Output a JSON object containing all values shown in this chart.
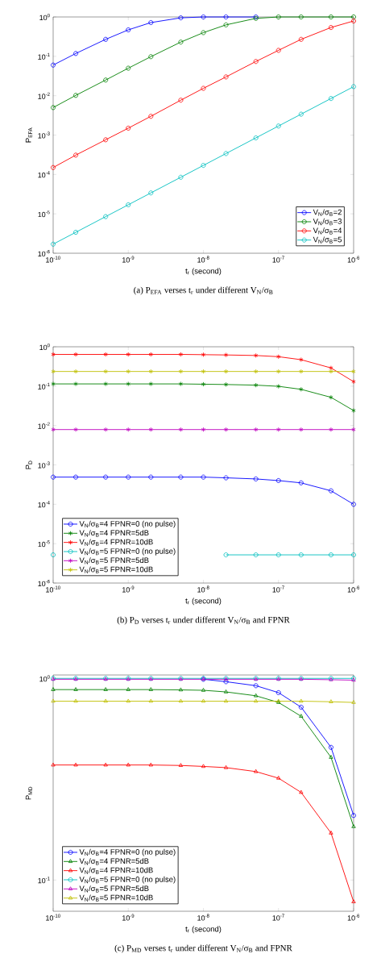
{
  "chart_data": [
    {
      "type": "line",
      "title": "(a) P$_{EFA}$ verses t$_{r}$ under different V$_{N}$/σ$_{B}$",
      "xlabel": "t$_{r}$ (second)",
      "ylabel": "P$_{EFA}$",
      "log": "xy",
      "legend": "bottom right",
      "x": [
        1e-10,
        2e-10,
        5e-10,
        1e-09,
        2e-09,
        5e-09,
        1e-08,
        2e-08,
        5e-08,
        1e-07,
        2e-07,
        5e-07,
        1e-06
      ],
      "xlim": [
        1e-10,
        1e-06
      ],
      "ylim": [
        1e-06,
        1
      ],
      "xticks": [
        {
          "value": 1e-10,
          "label": "10$^{-10}$"
        },
        {
          "value": 1e-09,
          "label": "10$^{-9}$"
        },
        {
          "value": 1e-08,
          "label": "10$^{-8}$"
        },
        {
          "value": 1e-07,
          "label": "10$^{-7}$"
        },
        {
          "value": 1e-06,
          "label": "10$^{-6}$"
        }
      ],
      "yticks": [
        {
          "value": 1e-06,
          "label": "10$^{-6}$"
        },
        {
          "value": 1e-05,
          "label": "10$^{-5}$"
        },
        {
          "value": 0.0001,
          "label": "10$^{-4}$"
        },
        {
          "value": 0.001,
          "label": "10$^{-3}$"
        },
        {
          "value": 0.01,
          "label": "10$^{-2}$"
        },
        {
          "value": 0.1,
          "label": "10$^{-1}$"
        },
        {
          "value": 1,
          "label": "10$^{0}$"
        }
      ],
      "series": [
        {
          "name": "V$_{N}$/σ$_{B}$=2",
          "color": "#0000ff",
          "marker": "circle",
          "values": [
            0.06,
            0.118,
            0.27,
            0.47,
            0.72,
            0.95,
            1,
            1,
            1,
            null,
            null,
            null,
            null
          ]
        },
        {
          "name": "V$_{N}$/σ$_{B}$=3",
          "color": "#008000",
          "marker": "circle",
          "values": [
            0.005,
            0.0102,
            0.025,
            0.05,
            0.098,
            0.23,
            0.4,
            0.63,
            0.92,
            1,
            1,
            1,
            1
          ]
        },
        {
          "name": "V$_{N}$/σ$_{B}$=4",
          "color": "#ff0000",
          "marker": "circle",
          "values": [
            0.00015,
            0.00031,
            0.00076,
            0.0015,
            0.003,
            0.0077,
            0.0154,
            0.03,
            0.074,
            0.142,
            0.27,
            0.54,
            0.79
          ]
        },
        {
          "name": "V$_{N}$/σ$_{B}$=5",
          "color": "#00bfbf",
          "marker": "circle",
          "values": [
            1.7e-06,
            3.4e-06,
            8.5e-06,
            1.7e-05,
            3.4e-05,
            8.5e-05,
            0.00017,
            0.00034,
            0.00085,
            0.0017,
            0.0034,
            0.0085,
            0.017
          ]
        }
      ]
    },
    {
      "type": "line",
      "title": "(b) P$_{D}$ verses t$_{r}$ under different V$_{N}$/σ$_{B}$ and FPNR",
      "xlabel": "t$_{r}$ (second)",
      "ylabel": "P$_{D}$",
      "log": "xy",
      "legend": "bottom left",
      "x": [
        1e-10,
        2e-10,
        5e-10,
        1e-09,
        2e-09,
        5e-09,
        1e-08,
        2e-08,
        5e-08,
        1e-07,
        2e-07,
        5e-07,
        1e-06
      ],
      "xlim": [
        1e-10,
        1e-06
      ],
      "ylim": [
        1e-06,
        1
      ],
      "xticks": [
        {
          "value": 1e-10,
          "label": "10$^{-10}$"
        },
        {
          "value": 1e-09,
          "label": "10$^{-9}$"
        },
        {
          "value": 1e-08,
          "label": "10$^{-8}$"
        },
        {
          "value": 1e-07,
          "label": "10$^{-7}$"
        },
        {
          "value": 1e-06,
          "label": "10$^{-6}$"
        }
      ],
      "yticks": [
        {
          "value": 1e-06,
          "label": "10$^{-6}$"
        },
        {
          "value": 1e-05,
          "label": "10$^{-5}$"
        },
        {
          "value": 0.0001,
          "label": "10$^{-4}$"
        },
        {
          "value": 0.001,
          "label": "10$^{-3}$"
        },
        {
          "value": 0.01,
          "label": "10$^{-2}$"
        },
        {
          "value": 0.1,
          "label": "10$^{-1}$"
        },
        {
          "value": 1,
          "label": "10$^{0}$"
        }
      ],
      "series": [
        {
          "name": "V$_{N}$/σ$_{B}$=4 FPNR=0 (no pulse)",
          "color": "#0000ff",
          "marker": "circle",
          "values": [
            0.00049,
            0.00049,
            0.00049,
            0.00049,
            0.00049,
            0.00049,
            0.00049,
            0.00047,
            0.00044,
            0.0004,
            0.00035,
            0.00022,
            0.0001
          ]
        },
        {
          "name": "V$_{N}$/σ$_{B}$=4 FPNR=5dB",
          "color": "#008000",
          "marker": "cross",
          "values": [
            0.114,
            0.114,
            0.114,
            0.114,
            0.114,
            0.114,
            0.112,
            0.11,
            0.106,
            0.099,
            0.083,
            0.052,
            0.024
          ]
        },
        {
          "name": "V$_{N}$/σ$_{B}$=4 FPNR=10dB",
          "color": "#ff0000",
          "marker": "cross",
          "values": [
            0.64,
            0.64,
            0.64,
            0.64,
            0.64,
            0.64,
            0.63,
            0.62,
            0.6,
            0.56,
            0.47,
            0.29,
            0.13
          ]
        },
        {
          "name": "V$_{N}$/σ$_{B}$=5 FPNR=0 (no pulse)",
          "color": "#00bfbf",
          "marker": "circle",
          "values": [
            5.2e-06,
            null,
            null,
            null,
            null,
            null,
            null,
            5.2e-06,
            5.2e-06,
            5.2e-06,
            5.2e-06,
            5.2e-06,
            5.2e-06
          ]
        },
        {
          "name": "V$_{N}$/σ$_{B}$=5 FPNR=5dB",
          "color": "#bf00bf",
          "marker": "cross",
          "values": [
            0.0079,
            0.0079,
            0.0079,
            0.0079,
            0.0079,
            0.0079,
            0.0079,
            0.0079,
            0.0079,
            0.0079,
            0.0079,
            0.0079,
            0.0079
          ]
        },
        {
          "name": "V$_{N}$/σ$_{B}$=5 FPNR=10dB",
          "color": "#bfbf00",
          "marker": "cross",
          "values": [
            0.236,
            0.236,
            0.236,
            0.236,
            0.236,
            0.236,
            0.236,
            0.236,
            0.236,
            0.236,
            0.236,
            0.236,
            0.236
          ]
        }
      ]
    },
    {
      "type": "line",
      "title": "(c) P$_{MD}$ verses t$_{r}$ under different V$_{N}$/σ$_{B}$ and FPNR",
      "xlabel": "t$_{r}$ (second)",
      "ylabel": "P$_{MD}$",
      "log": "xy",
      "legend": "bottom left",
      "x": [
        1e-10,
        2e-10,
        5e-10,
        1e-09,
        2e-09,
        5e-09,
        1e-08,
        2e-08,
        5e-08,
        1e-07,
        2e-07,
        5e-07,
        1e-06
      ],
      "xlim": [
        1e-10,
        1e-06
      ],
      "ylim": [
        0.07,
        1.04
      ],
      "xticks": [
        {
          "value": 1e-10,
          "label": "10$^{-10}$"
        },
        {
          "value": 1e-09,
          "label": "10$^{-9}$"
        },
        {
          "value": 1e-08,
          "label": "10$^{-8}$"
        },
        {
          "value": 1e-07,
          "label": "10$^{-7}$"
        },
        {
          "value": 1e-06,
          "label": "10$^{-6}$"
        }
      ],
      "yticks": [
        {
          "value": 0.1,
          "label": "10$^{-1}$"
        },
        {
          "value": 1,
          "label": "10$^{0}$"
        }
      ],
      "series": [
        {
          "name": "V$_{N}$/σ$_{B}$=4 FPNR=0 (no pulse)",
          "color": "#0000ff",
          "marker": "circle",
          "values": [
            null,
            null,
            null,
            null,
            null,
            null,
            0.99,
            0.963,
            0.92,
            0.85,
            0.72,
            0.455,
            0.209
          ]
        },
        {
          "name": "V$_{N}$/σ$_{B}$=4 FPNR=5dB",
          "color": "#008000",
          "marker": "triangle",
          "values": [
            0.88,
            0.88,
            0.88,
            0.88,
            0.88,
            0.877,
            0.873,
            0.857,
            0.82,
            0.76,
            0.649,
            0.406,
            0.184
          ]
        },
        {
          "name": "V$_{N}$/σ$_{B}$=4 FPNR=10dB",
          "color": "#ff0000",
          "marker": "triangle",
          "values": [
            0.372,
            0.372,
            0.372,
            0.372,
            0.372,
            0.37,
            0.366,
            0.361,
            0.345,
            0.32,
            0.272,
            0.171,
            0.078
          ]
        },
        {
          "name": "V$_{N}$/σ$_{B}$=5 FPNR=0 (no pulse)",
          "color": "#00bfbf",
          "marker": "circle",
          "values": [
            1,
            1,
            1,
            1,
            1,
            1,
            1,
            1,
            1,
            1,
            1,
            1,
            1
          ]
        },
        {
          "name": "V$_{N}$/σ$_{B}$=5 FPNR=5dB",
          "color": "#bf00bf",
          "marker": "triangle",
          "values": [
            0.99,
            0.99,
            0.99,
            0.99,
            0.99,
            0.99,
            0.99,
            0.99,
            0.99,
            0.99,
            0.99,
            0.985,
            0.98
          ]
        },
        {
          "name": "V$_{N}$/σ$_{B}$=5 FPNR=10dB",
          "color": "#bfbf00",
          "marker": "triangle",
          "values": [
            0.771,
            0.771,
            0.771,
            0.771,
            0.771,
            0.771,
            0.771,
            0.771,
            0.771,
            0.771,
            0.771,
            0.766,
            0.76
          ]
        }
      ]
    }
  ]
}
